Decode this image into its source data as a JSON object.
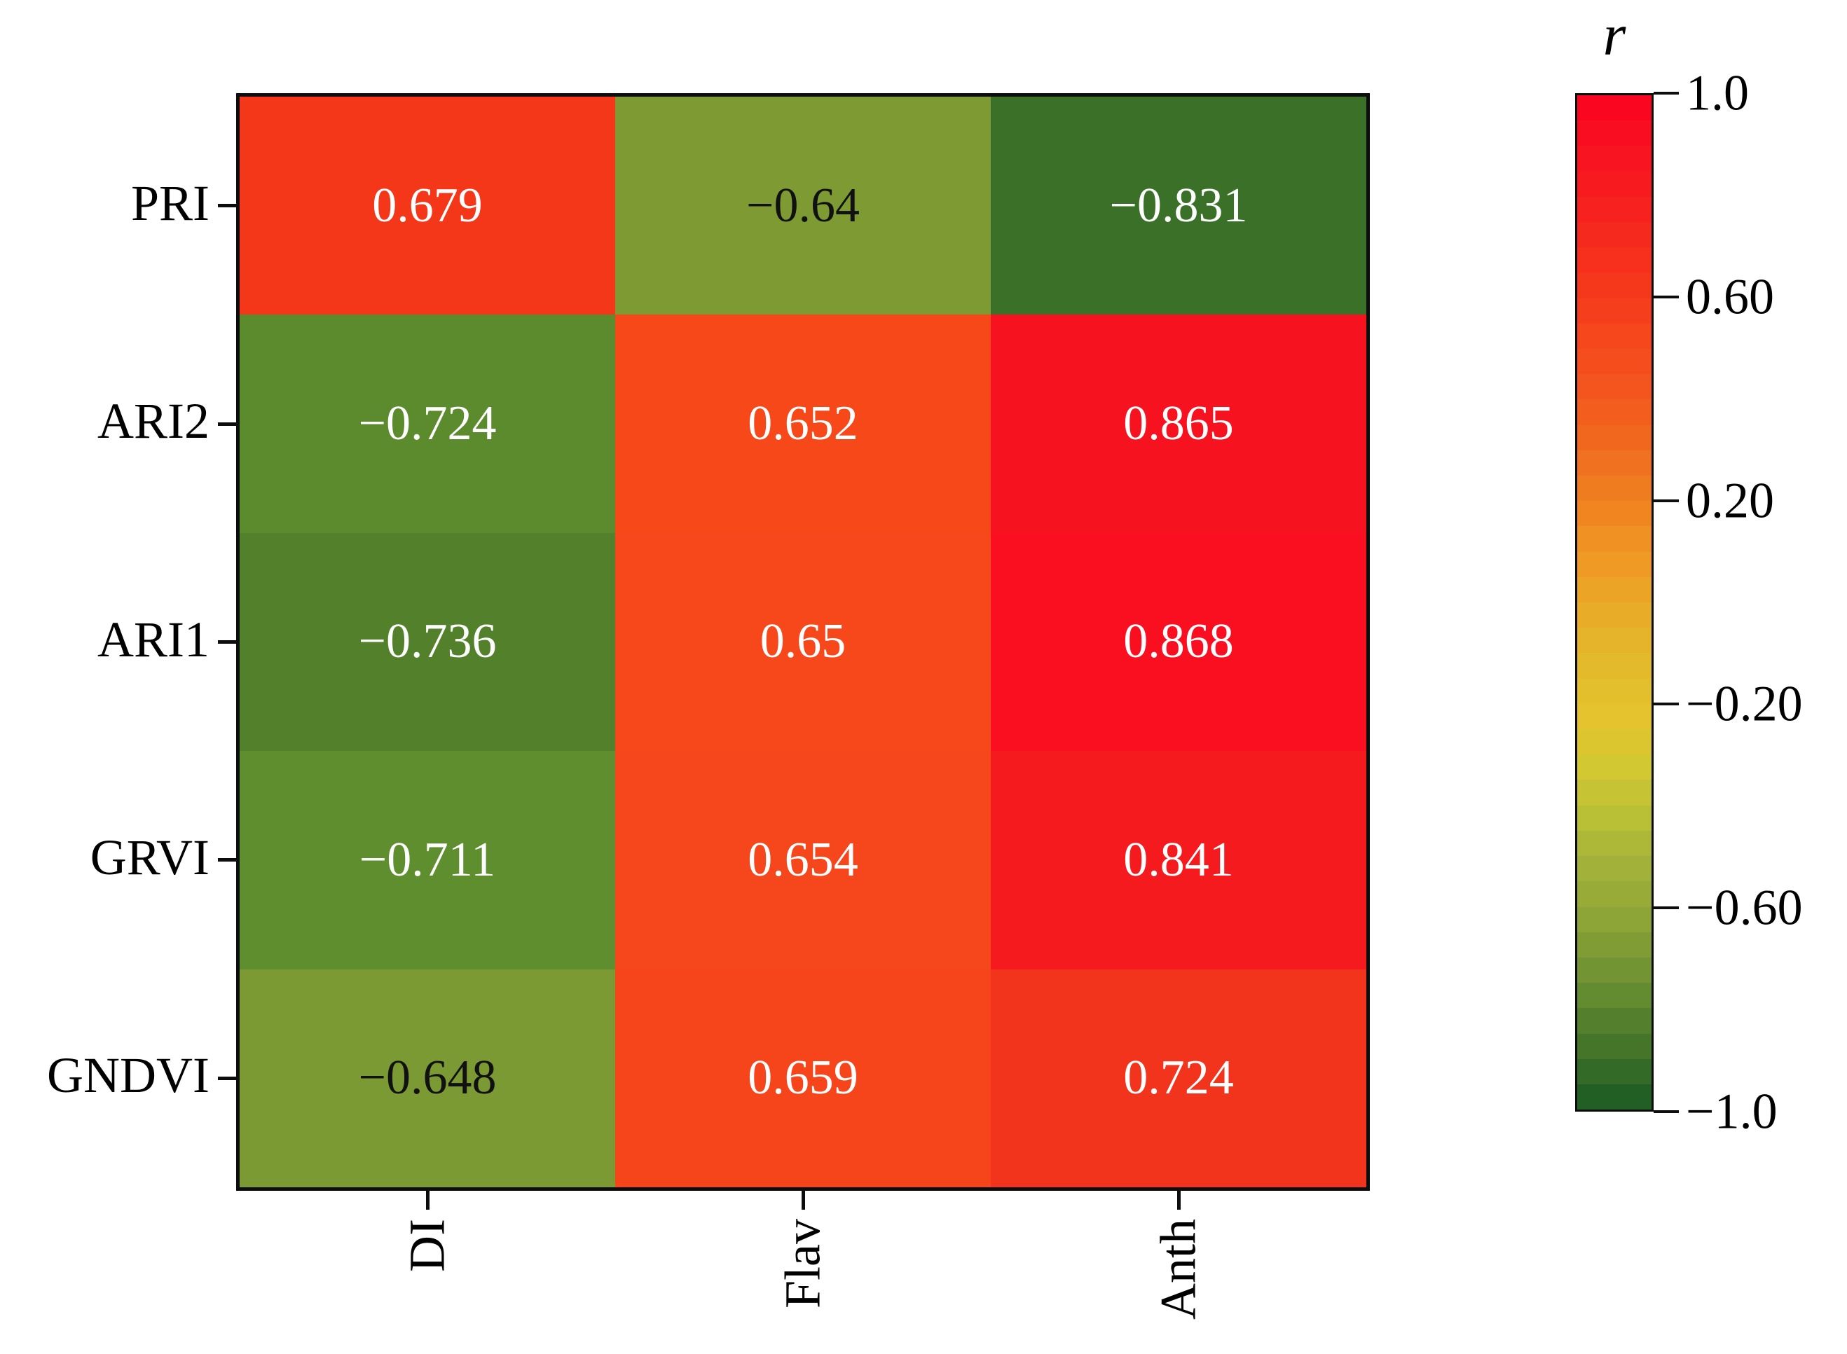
{
  "figure": {
    "background": "#ffffff",
    "accent_black": "#0d0d0d"
  },
  "chart_data": {
    "type": "heatmap",
    "title": "",
    "xlabel": "",
    "ylabel": "",
    "grid": false,
    "legend_position": "right-colorbar",
    "rows": [
      "PRI",
      "ARI2",
      "ARI1",
      "GRVI",
      "GNDVI"
    ],
    "columns": [
      "DI",
      "Flav",
      "Anth"
    ],
    "values": [
      [
        0.679,
        -0.64,
        -0.831
      ],
      [
        -0.724,
        0.652,
        0.865
      ],
      [
        -0.736,
        0.65,
        0.868
      ],
      [
        -0.711,
        0.654,
        0.841
      ],
      [
        -0.648,
        0.659,
        0.724
      ]
    ],
    "value_labels": [
      [
        "0.679",
        "−0.64",
        "−0.831"
      ],
      [
        "−0.724",
        "0.652",
        "0.865"
      ],
      [
        "−0.736",
        "0.65",
        "0.868"
      ],
      [
        "−0.711",
        "0.654",
        "0.841"
      ],
      [
        "−0.648",
        "0.659",
        "0.724"
      ]
    ],
    "cell_colors": [
      [
        "#f43619",
        "#7e9a33",
        "#3b7028"
      ],
      [
        "#5c8b2d",
        "#f74819",
        "#f6131f"
      ],
      [
        "#53812b",
        "#f7481b",
        "#fa0f20"
      ],
      [
        "#5f8e2e",
        "#f6461b",
        "#f51a1e"
      ],
      [
        "#7c9a33",
        "#f6451b",
        "#f2341d"
      ]
    ],
    "cell_text_colors": [
      [
        "#ffffff",
        "#111111",
        "#fdfdfd"
      ],
      [
        "#ffffff",
        "#ffffff",
        "#ffffff"
      ],
      [
        "#fdfdfd",
        "#ffffff",
        "#ffffff"
      ],
      [
        "#fdfdfd",
        "#ffffff",
        "#ffffff"
      ],
      [
        "#111111",
        "#ffffff",
        "#ffffff"
      ]
    ],
    "colorbar": {
      "title": "r",
      "range_top": 1.0,
      "range_bottom": -1.0,
      "ticks": [
        "1.0",
        "0.60",
        "0.20",
        "−0.20",
        "−0.60",
        "−1.0"
      ],
      "bands": 40,
      "stops_top_to_bottom": [
        "#fb0621",
        "#f81320",
        "#f7201f",
        "#f62d1d",
        "#f53a1c",
        "#f6481b",
        "#f4551d",
        "#f1671e",
        "#f07a20",
        "#f18e22",
        "#eda026",
        "#e7b02a",
        "#e3bc2d",
        "#e5c42e",
        "#d2c832",
        "#bcc136",
        "#a4b339",
        "#92a737",
        "#7b9933",
        "#5f882f",
        "#427329",
        "#215f25"
      ]
    }
  }
}
